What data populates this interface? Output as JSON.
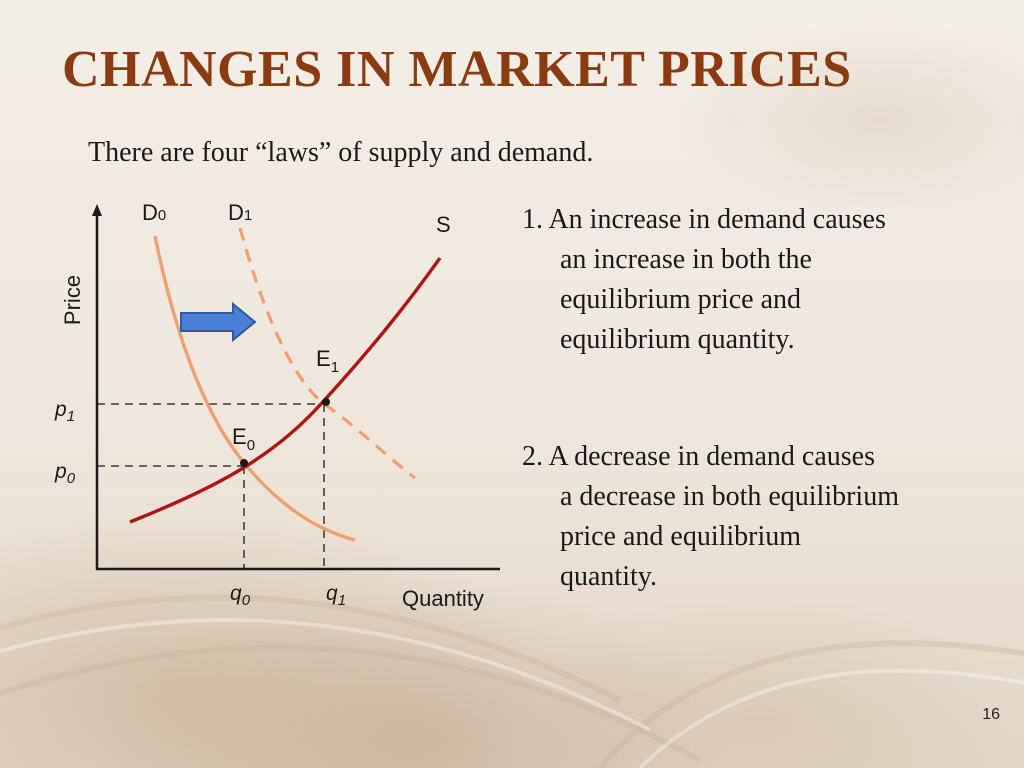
{
  "slide": {
    "title": "CHANGES IN MARKET PRICES",
    "subtitle": "There are four “laws” of supply and demand.",
    "page_number": "16"
  },
  "graph": {
    "axis_y_label": "Price",
    "axis_x_label": "Quantity",
    "curves": {
      "demand_initial": {
        "base": "D",
        "sub": "0"
      },
      "demand_new": {
        "base": "D",
        "sub": "1"
      },
      "supply": "S"
    },
    "points": {
      "e0": {
        "base": "E",
        "sub": "0"
      },
      "e1": {
        "base": "E",
        "sub": "1"
      }
    },
    "price_ticks": {
      "p0": {
        "base": "p",
        "sub": "0"
      },
      "p1": {
        "base": "p",
        "sub": "1"
      }
    },
    "quantity_ticks": {
      "q0": {
        "base": "q",
        "sub": "0"
      },
      "q1": {
        "base": "q",
        "sub": "1"
      }
    },
    "shift_arrow_icon": "right-arrow-icon",
    "colors": {
      "supply": "#b01515",
      "demand": "#f0a070",
      "arrow_fill": "#4a7fd8",
      "arrow_stroke": "#2f5a9e",
      "title": "#8a3b12"
    }
  },
  "laws": [
    {
      "lines": [
        "1. An increase in demand causes",
        "an increase in both the",
        "equilibrium price and",
        "equilibrium quantity."
      ]
    },
    {
      "lines": [
        "2. A decrease in demand causes",
        "a decrease in both equilibrium",
        "price and equilibrium",
        "quantity."
      ]
    }
  ]
}
